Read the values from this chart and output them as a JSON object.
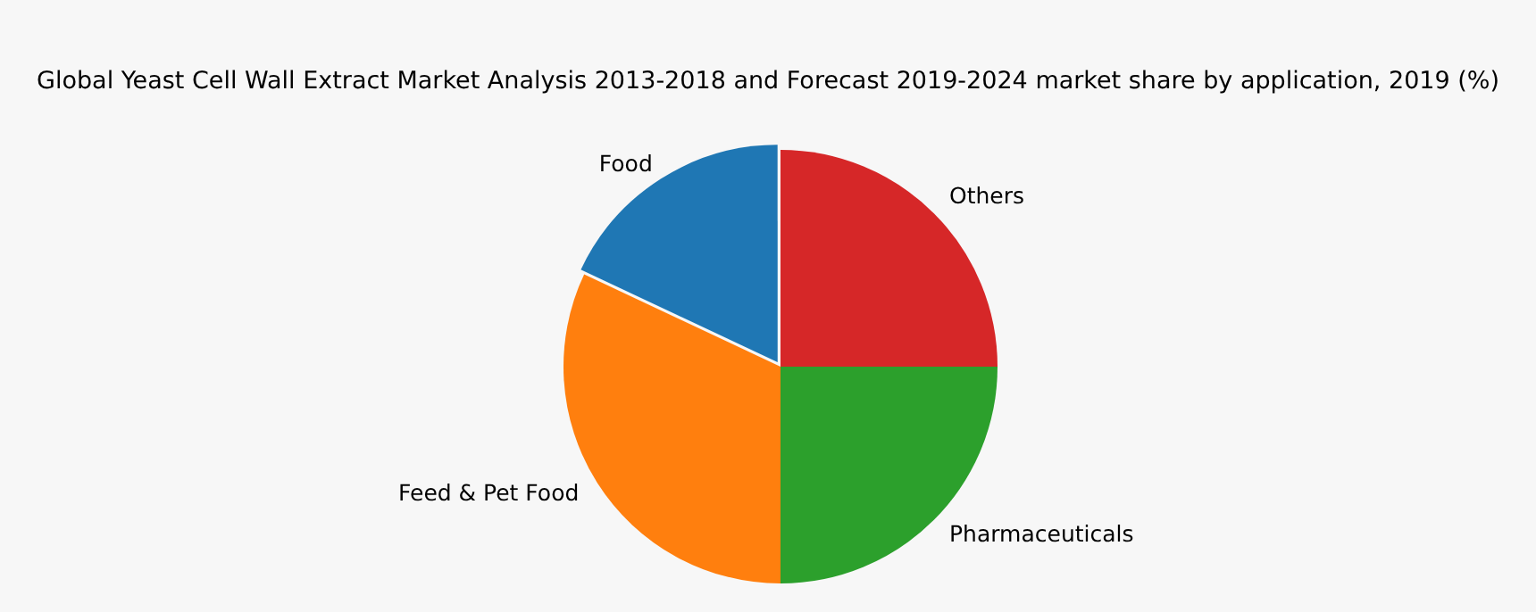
{
  "chart_data": {
    "type": "pie",
    "title": "Global Yeast Cell Wall Extract Market Analysis 2013-2018 and Forecast 2019-2024 market share by application, 2019 (%)",
    "categories": [
      "Others",
      "Pharmaceuticals",
      "Feed & Pet Food",
      "Food"
    ],
    "values": [
      25,
      25,
      32,
      18
    ],
    "colors": [
      "#d62728",
      "#2ca02c",
      "#ff7f0e",
      "#1f77b4"
    ],
    "legend": false
  }
}
